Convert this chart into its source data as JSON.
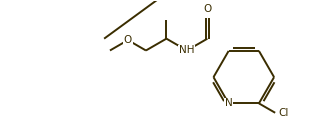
{
  "bg_color": "#ffffff",
  "bond_color": "#3a2d00",
  "atom_color": "#3a2d00",
  "line_width": 1.4,
  "font_size": 7.5,
  "fig_width": 3.26,
  "fig_height": 1.37,
  "dpi": 100,
  "xlim": [
    0.0,
    11.0
  ],
  "ylim": [
    0.5,
    5.2
  ]
}
